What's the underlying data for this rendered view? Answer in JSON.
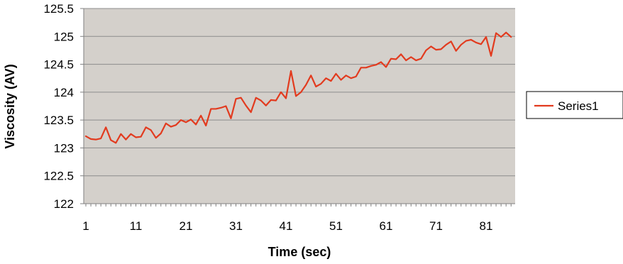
{
  "chart_data": {
    "type": "line",
    "title": "",
    "xlabel": "Time (sec)",
    "ylabel": "Viscosity (AV)",
    "x": [
      1,
      2,
      3,
      4,
      5,
      6,
      7,
      8,
      9,
      10,
      11,
      12,
      13,
      14,
      15,
      16,
      17,
      18,
      19,
      20,
      21,
      22,
      23,
      24,
      25,
      26,
      27,
      28,
      29,
      30,
      31,
      32,
      33,
      34,
      35,
      36,
      37,
      38,
      39,
      40,
      41,
      42,
      43,
      44,
      45,
      46,
      47,
      48,
      49,
      50,
      51,
      52,
      53,
      54,
      55,
      56,
      57,
      58,
      59,
      60,
      61,
      62,
      63,
      64,
      65,
      66,
      67,
      68,
      69,
      70,
      71,
      72,
      73,
      74,
      75,
      76,
      77,
      78,
      79,
      80,
      81,
      82,
      83,
      84,
      85,
      86
    ],
    "xticks": [
      1,
      11,
      21,
      31,
      41,
      51,
      61,
      71,
      81
    ],
    "xlim": [
      1,
      86
    ],
    "ylim": [
      122,
      125.5
    ],
    "yticks": [
      122,
      122.5,
      123,
      123.5,
      124,
      124.5,
      125,
      125.5
    ],
    "grid": true,
    "legend_position": "right",
    "series": [
      {
        "name": "Series1",
        "color": "#e23b1f",
        "values": [
          123.21,
          123.16,
          123.15,
          123.17,
          123.37,
          123.14,
          123.09,
          123.25,
          123.15,
          123.25,
          123.19,
          123.2,
          123.37,
          123.32,
          123.18,
          123.26,
          123.44,
          123.38,
          123.41,
          123.5,
          123.46,
          123.51,
          123.42,
          123.58,
          123.4,
          123.7,
          123.7,
          123.72,
          123.75,
          123.53,
          123.88,
          123.9,
          123.76,
          123.64,
          123.9,
          123.85,
          123.76,
          123.86,
          123.85,
          124.0,
          123.89,
          124.38,
          123.93,
          124.0,
          124.13,
          124.3,
          124.1,
          124.15,
          124.25,
          124.2,
          124.33,
          124.22,
          124.3,
          124.25,
          124.28,
          124.44,
          124.44,
          124.47,
          124.49,
          124.54,
          124.45,
          124.6,
          124.59,
          124.68,
          124.57,
          124.63,
          124.57,
          124.6,
          124.75,
          124.82,
          124.76,
          124.77,
          124.85,
          124.91,
          124.74,
          124.85,
          124.92,
          124.94,
          124.89,
          124.86,
          124.99,
          124.65,
          125.06,
          124.99,
          125.07,
          124.99
        ]
      }
    ]
  }
}
